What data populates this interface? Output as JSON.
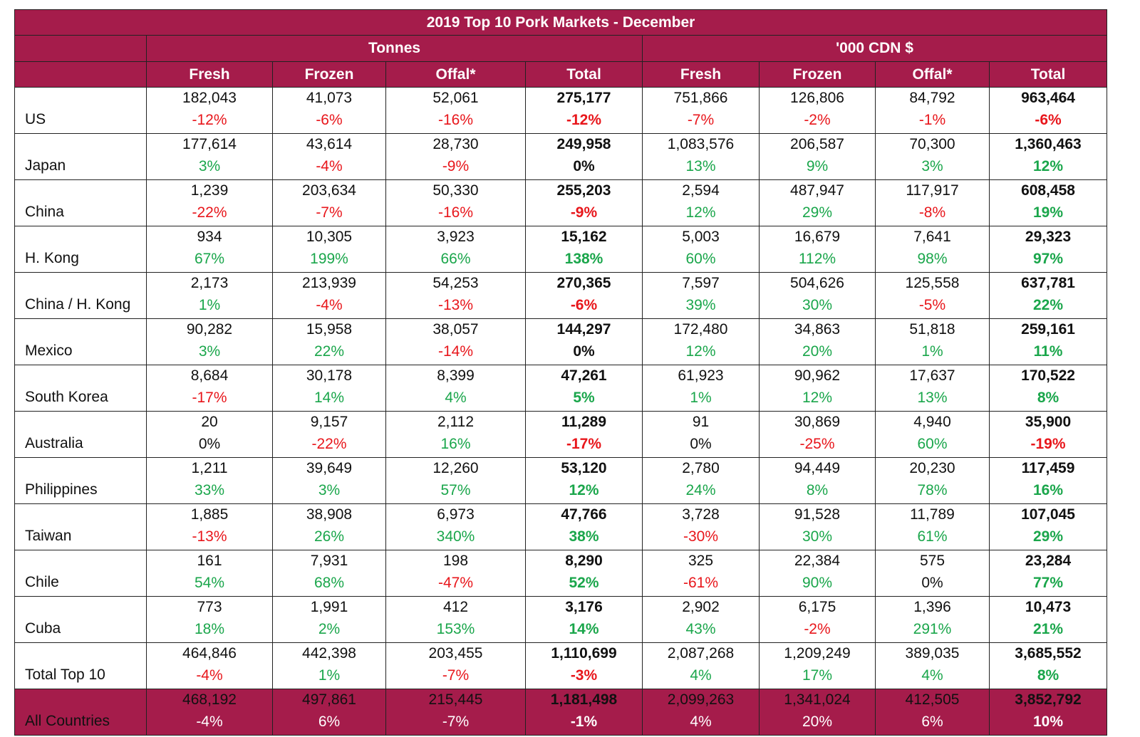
{
  "chart_data": {
    "type": "table",
    "title": "2019 Top 10 Pork Markets - December",
    "groups": [
      "Tonnes",
      "'000 CDN $"
    ],
    "columns": [
      "Fresh",
      "Frozen",
      "Offal*",
      "Total",
      "Fresh",
      "Frozen",
      "Offal*",
      "Total"
    ],
    "rows": [
      {
        "country": "US",
        "values": [
          "182,043",
          "41,073",
          "52,061",
          "275,177",
          "751,866",
          "126,806",
          "84,792",
          "963,464"
        ],
        "changes": [
          "-12%",
          "-6%",
          "-16%",
          "-12%",
          "-7%",
          "-2%",
          "-1%",
          "-6%"
        ]
      },
      {
        "country": "Japan",
        "values": [
          "177,614",
          "43,614",
          "28,730",
          "249,958",
          "1,083,576",
          "206,587",
          "70,300",
          "1,360,463"
        ],
        "changes": [
          "3%",
          "-4%",
          "-9%",
          "0%",
          "13%",
          "9%",
          "3%",
          "12%"
        ]
      },
      {
        "country": "China",
        "values": [
          "1,239",
          "203,634",
          "50,330",
          "255,203",
          "2,594",
          "487,947",
          "117,917",
          "608,458"
        ],
        "changes": [
          "-22%",
          "-7%",
          "-16%",
          "-9%",
          "12%",
          "29%",
          "-8%",
          "19%"
        ]
      },
      {
        "country": "H. Kong",
        "values": [
          "934",
          "10,305",
          "3,923",
          "15,162",
          "5,003",
          "16,679",
          "7,641",
          "29,323"
        ],
        "changes": [
          "67%",
          "199%",
          "66%",
          "138%",
          "60%",
          "112%",
          "98%",
          "97%"
        ]
      },
      {
        "country": "China / H. Kong",
        "values": [
          "2,173",
          "213,939",
          "54,253",
          "270,365",
          "7,597",
          "504,626",
          "125,558",
          "637,781"
        ],
        "changes": [
          "1%",
          "-4%",
          "-13%",
          "-6%",
          "39%",
          "30%",
          "-5%",
          "22%"
        ]
      },
      {
        "country": "Mexico",
        "values": [
          "90,282",
          "15,958",
          "38,057",
          "144,297",
          "172,480",
          "34,863",
          "51,818",
          "259,161"
        ],
        "changes": [
          "3%",
          "22%",
          "-14%",
          "0%",
          "12%",
          "20%",
          "1%",
          "11%"
        ]
      },
      {
        "country": "South Korea",
        "values": [
          "8,684",
          "30,178",
          "8,399",
          "47,261",
          "61,923",
          "90,962",
          "17,637",
          "170,522"
        ],
        "changes": [
          "-17%",
          "14%",
          "4%",
          "5%",
          "1%",
          "12%",
          "13%",
          "8%"
        ]
      },
      {
        "country": "Australia",
        "values": [
          "20",
          "9,157",
          "2,112",
          "11,289",
          "91",
          "30,869",
          "4,940",
          "35,900"
        ],
        "changes": [
          "0%",
          "-22%",
          "16%",
          "-17%",
          "0%",
          "-25%",
          "60%",
          "-19%"
        ]
      },
      {
        "country": "Philippines",
        "values": [
          "1,211",
          "39,649",
          "12,260",
          "53,120",
          "2,780",
          "94,449",
          "20,230",
          "117,459"
        ],
        "changes": [
          "33%",
          "3%",
          "57%",
          "12%",
          "24%",
          "8%",
          "78%",
          "16%"
        ]
      },
      {
        "country": "Taiwan",
        "values": [
          "1,885",
          "38,908",
          "6,973",
          "47,766",
          "3,728",
          "91,528",
          "11,789",
          "107,045"
        ],
        "changes": [
          "-13%",
          "26%",
          "340%",
          "38%",
          "-30%",
          "30%",
          "61%",
          "29%"
        ]
      },
      {
        "country": "Chile",
        "values": [
          "161",
          "7,931",
          "198",
          "8,290",
          "325",
          "22,384",
          "575",
          "23,284"
        ],
        "changes": [
          "54%",
          "68%",
          "-47%",
          "52%",
          "-61%",
          "90%",
          "0%",
          "77%"
        ]
      },
      {
        "country": "Cuba",
        "values": [
          "773",
          "1,991",
          "412",
          "3,176",
          "2,902",
          "6,175",
          "1,396",
          "10,473"
        ],
        "changes": [
          "18%",
          "2%",
          "153%",
          "14%",
          "43%",
          "-2%",
          "291%",
          "21%"
        ]
      },
      {
        "country": "Total Top 10",
        "values": [
          "464,846",
          "442,398",
          "203,455",
          "1,110,699",
          "2,087,268",
          "1,209,249",
          "389,035",
          "3,685,552"
        ],
        "changes": [
          "-4%",
          "1%",
          "-7%",
          "-3%",
          "4%",
          "17%",
          "4%",
          "8%"
        ]
      }
    ],
    "all_countries": {
      "country": "All Countries",
      "values": [
        "468,192",
        "497,861",
        "215,445",
        "1,181,498",
        "2,099,263",
        "1,341,024",
        "412,505",
        "3,852,792"
      ],
      "changes": [
        "-4%",
        "6%",
        "-7%",
        "-1%",
        "4%",
        "20%",
        "6%",
        "10%"
      ]
    },
    "colors": {
      "header": "#a51c4b",
      "positive": "#1aa64b",
      "negative": "#e8161b"
    }
  }
}
